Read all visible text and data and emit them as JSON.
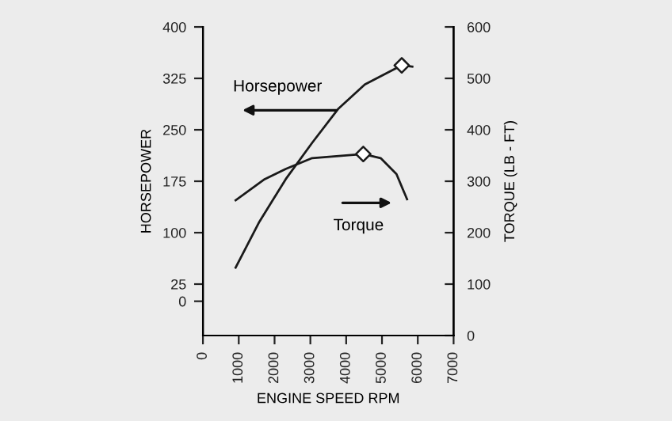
{
  "chart_data": {
    "type": "line",
    "xlabel": "ENGINE SPEED RPM",
    "ylabel": "HORSEPOWER",
    "y2label": "TORQUE (LB - FT)",
    "xlim": [
      0,
      7000
    ],
    "xticks": [
      0,
      1000,
      2000,
      3000,
      4000,
      5000,
      6000,
      7000
    ],
    "ylim": [
      -50,
      400
    ],
    "yticks": [
      0,
      25,
      100,
      175,
      250,
      325,
      400
    ],
    "y2lim": [
      0,
      600
    ],
    "y2ticks": [
      0,
      100,
      200,
      300,
      400,
      500,
      600
    ],
    "grid": false,
    "legend": false,
    "series": [
      {
        "type": "line",
        "color": "#1a1a1a",
        "marker": "none",
        "x": [
          913,
          1576,
          2312,
          3049,
          3785,
          4521,
          5552,
          5847
        ],
        "values": [
          49,
          116,
          178,
          231,
          281,
          316,
          344,
          342
        ]
      },
      {
        "type": "line",
        "axis": "y2",
        "color": "#1a1a1a",
        "marker": "none",
        "x": [
          913,
          1723,
          2312,
          3049,
          4477,
          4963,
          5405,
          5700
        ],
        "values": [
          263,
          304,
          324,
          345,
          353,
          345,
          314,
          265
        ]
      },
      {
        "type": "scatter",
        "color": "#1a1a1a",
        "marker": "diamond",
        "x": [
          5552
        ],
        "values": [
          344
        ]
      },
      {
        "type": "scatter",
        "axis": "y2",
        "color": "#1a1a1a",
        "marker": "diamond",
        "x": [
          4477
        ],
        "values": [
          353
        ]
      }
    ],
    "annotations": [
      "Horsepower",
      "Torque"
    ]
  }
}
